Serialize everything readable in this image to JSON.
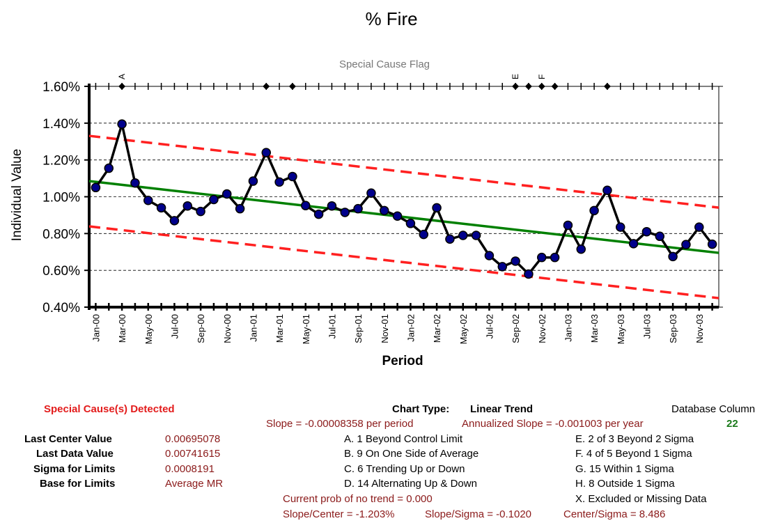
{
  "chart_data": {
    "type": "line",
    "title": "% Fire",
    "subtitle": "Special Cause Flag",
    "xlabel": "Period",
    "ylabel": "Individual Value",
    "ylim": [
      0.004,
      0.016
    ],
    "yticks": [
      "0.40%",
      "0.60%",
      "0.80%",
      "1.00%",
      "1.20%",
      "1.40%",
      "1.60%"
    ],
    "x_tick_labels": [
      "Jan-00",
      "Mar-00",
      "May-00",
      "Jul-00",
      "Sep-00",
      "Nov-00",
      "Jan-01",
      "Mar-01",
      "May-01",
      "Jul-01",
      "Sep-01",
      "Nov-01",
      "Jan-02",
      "Mar-02",
      "May-02",
      "Jul-02",
      "Sep-02",
      "Nov-02",
      "Jan-03",
      "Mar-03",
      "May-03",
      "Jul-03",
      "Sep-03",
      "Nov-03"
    ],
    "series": [
      {
        "values": [
          0.0105,
          0.01155,
          0.01395,
          0.01075,
          0.0098,
          0.0094,
          0.0087,
          0.0095,
          0.0092,
          0.00985,
          0.01015,
          0.00935,
          0.01085,
          0.0124,
          0.0108,
          0.0111,
          0.00952,
          0.00905,
          0.0095,
          0.00915,
          0.00935,
          0.0102,
          0.00925,
          0.00895,
          0.00855,
          0.00795,
          0.0094,
          0.0077,
          0.0079,
          0.0079,
          0.0068,
          0.0062,
          0.0065,
          0.0058,
          0.0067,
          0.0067,
          0.00845,
          0.00715,
          0.00925,
          0.01035,
          0.00835,
          0.00745,
          0.0081,
          0.00785,
          0.00675,
          0.0074,
          0.00835,
          0.00742
        ],
        "color": "#00008b"
      }
    ],
    "center_line": {
      "start": 0.01085,
      "end": 0.00695,
      "color": "#008000"
    },
    "upper_limit": {
      "start": 0.01331,
      "end": 0.00941,
      "color": "#ff2020"
    },
    "lower_limit": {
      "start": 0.00839,
      "end": 0.00449,
      "color": "#ff2020"
    },
    "flags": [
      {
        "period": 3,
        "label": "A"
      },
      {
        "period": 14,
        "label": ""
      },
      {
        "period": 16,
        "label": ""
      },
      {
        "period": 33,
        "label": "E"
      },
      {
        "period": 34,
        "label": ""
      },
      {
        "period": 35,
        "label": "F"
      },
      {
        "period": 36,
        "label": ""
      },
      {
        "period": 40,
        "label": ""
      }
    ],
    "grid": true
  },
  "panel": {
    "special_cause": "Special Cause(s) Detected",
    "chart_type_label": "Chart Type:",
    "chart_type_value": "Linear Trend",
    "db_column_label": "Database Column",
    "db_column_value": "22",
    "slope": "Slope = -0.00008358 per period",
    "annualized_slope": "Annualized Slope = -0.001003 per year",
    "stats": [
      {
        "label": "Last Center Value",
        "value": "0.00695078"
      },
      {
        "label": "Last Data Value",
        "value": "0.00741615"
      },
      {
        "label": "Sigma for Limits",
        "value": "0.0008191"
      },
      {
        "label": "Base for Limits",
        "value": "Average MR"
      }
    ],
    "rules_left": [
      "A.  1 Beyond Control Limit",
      "B.  9 On One Side of Average",
      "C.  6 Trending Up or Down",
      "D.  14 Alternating  Up & Down"
    ],
    "rules_right": [
      "E.   2 of 3 Beyond 2 Sigma",
      "F.   4 of 5 Beyond 1 Sigma",
      "G.   15 Within 1 Sigma",
      "H.   8 Outside 1 Sigma",
      "X.   Excluded or Missing Data"
    ],
    "prob_no_trend": "Current prob of no trend = 0.000",
    "slope_center": "Slope/Center = -1.203%",
    "slope_sigma": "Slope/Sigma = -0.1020",
    "center_sigma": "Center/Sigma = 8.486"
  }
}
